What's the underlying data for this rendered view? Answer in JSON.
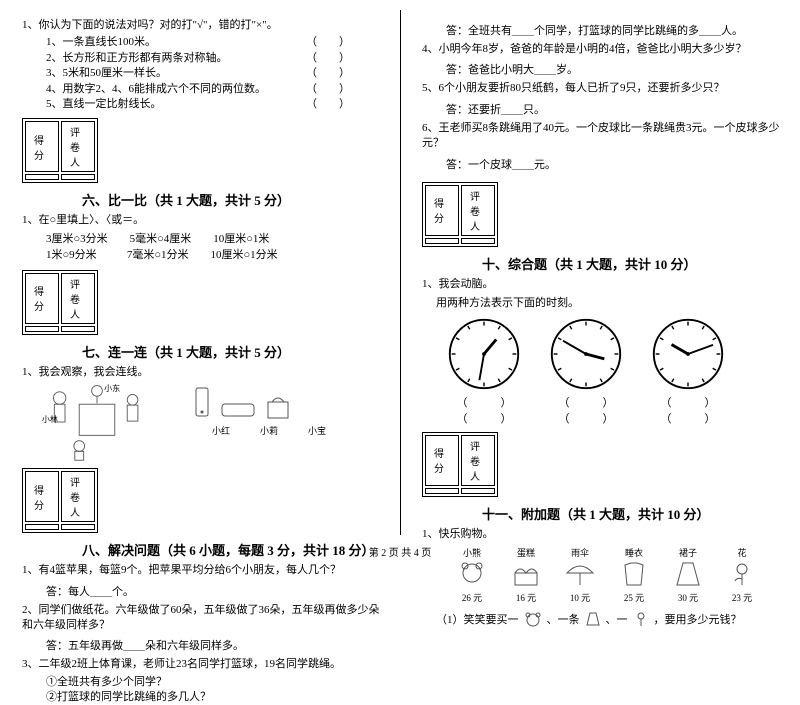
{
  "scorebox": {
    "c1": "得分",
    "c2": "评卷人"
  },
  "left": {
    "q1": "1、你认为下面的说法对吗？对的打\"√\"，错的打\"×\"。",
    "q1_items": [
      "1、一条直线长100米。",
      "2、长方形和正方形都有两条对称轴。",
      "3、5米和50厘米一样长。",
      "4、用数字2、4、6能排成六个不同的两位数。",
      "5、直线一定比射线长。"
    ],
    "sec6_title": "六、比一比（共 1 大题，共计 5 分）",
    "sec6_q": "1、在○里填上〉、〈或＝。",
    "sec6_rows": [
      "3厘米○3分米        5毫米○4厘米        10厘米○1米",
      "1米○9分米           7毫米○1分米        10厘米○1分米"
    ],
    "sec7_title": "七、连一连（共 1 大题，共计 5 分）",
    "sec7_q": "1、我会观察，我会连线。",
    "kid_labels": {
      "left": "小林",
      "top": "小东",
      "r1": "小红",
      "r2": "小莉",
      "r3": "小宝"
    },
    "sec8_title": "八、解决问题（共 6 小题，每题 3 分，共计 18 分）",
    "sec8_q1": "1、有4篮苹果，每篮9个。把苹果平均分给6个小朋友，每人几个？",
    "sec8_a1": "答：每人＿＿个。",
    "sec8_q2": "2、同学们做纸花。六年级做了60朵，五年级做了36朵，五年级再做多少朵和六年级同样多？",
    "sec8_a2": "答：五年级再做＿＿朵和六年级同样多。",
    "sec8_q3": "3、二年级2班上体育课，老师让23名同学打篮球，19名同学跳绳。",
    "sec8_q3a": "①全班共有多少个同学？",
    "sec8_q3b": "②打篮球的同学比跳绳的多几人？"
  },
  "right": {
    "a3": "答：全班共有＿＿个同学，打篮球的同学比跳绳的多＿＿人。",
    "q4": "4、小明今年8岁，爸爸的年龄是小明的4倍，爸爸比小明大多少岁？",
    "a4": "答：爸爸比小明大＿＿岁。",
    "q5": "5、6个小朋友要折80只纸鹤，每人已折了9只，还要折多少只？",
    "a5": "答：还要折＿＿只。",
    "q6": "6、王老师买8条跳绳用了40元。一个皮球比一条跳绳贵3元。一个皮球多少元？",
    "a6": "答：一个皮球＿＿元。",
    "sec10_title": "十、综合题（共 1 大题，共计 10 分）",
    "sec10_q": "1、我会动脑。",
    "sec10_sub": "用两种方法表示下面的时刻。",
    "sec11_title": "十一、附加题（共 1 大题，共计 10 分）",
    "sec11_q": "1、快乐购物。",
    "shop": [
      {
        "name": "小熊",
        "price": "26 元"
      },
      {
        "name": "蛋糕",
        "price": "16 元"
      },
      {
        "name": "雨伞",
        "price": "10 元"
      },
      {
        "name": "睡衣",
        "price": "25 元"
      },
      {
        "name": "裙子",
        "price": "30 元"
      },
      {
        "name": "花",
        "price": "23 元"
      }
    ],
    "sec11_line": "（1）笑笑要买一＿＿、一条＿＿、一＿＿，要用多少元钱？"
  },
  "clocks": [
    {
      "hour_angle": 40,
      "min_angle": 190
    },
    {
      "hour_angle": 105,
      "min_angle": 300
    },
    {
      "hour_angle": 300,
      "min_angle": 70
    }
  ],
  "colors": {
    "stroke": "#000000",
    "bg": "#ffffff"
  },
  "footer": "第 2 页 共 4 页"
}
